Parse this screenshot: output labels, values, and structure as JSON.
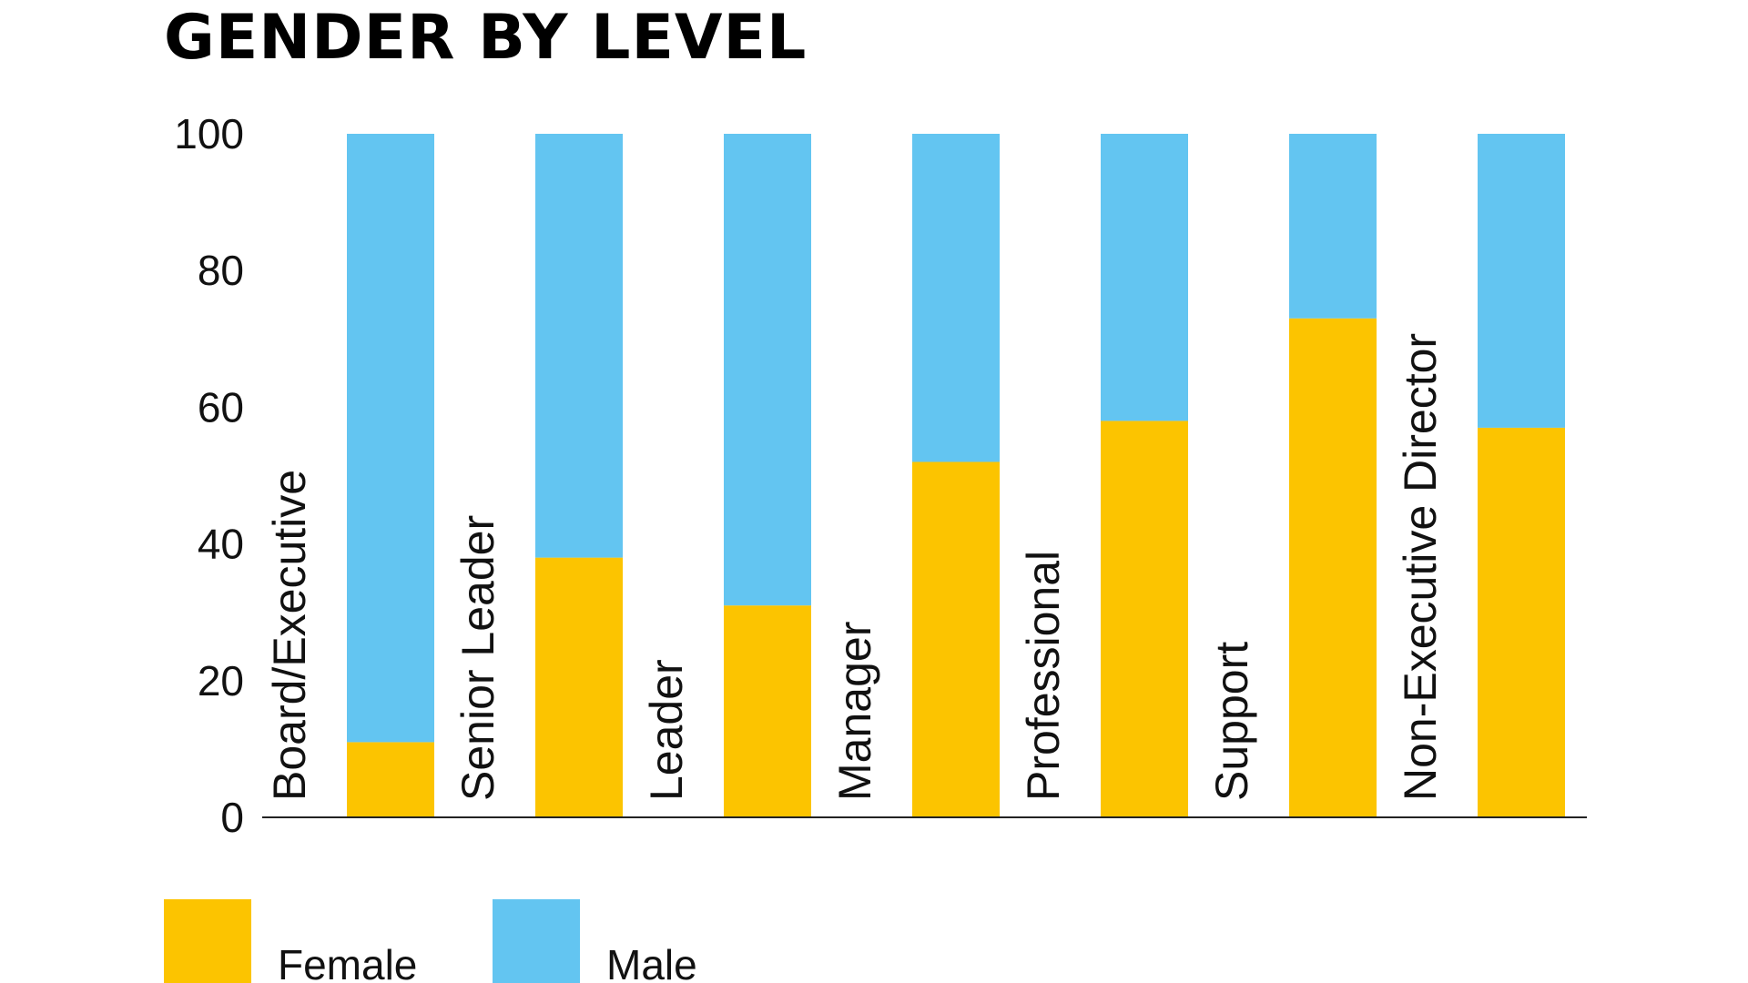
{
  "chart_data": {
    "type": "bar",
    "stacked": true,
    "title": "GENDER BY LEVEL",
    "categories": [
      "Board/Executive",
      "Senior Leader",
      "Leader",
      "Manager",
      "Professional",
      "Support",
      "Non-Executive Director"
    ],
    "series": [
      {
        "name": "Female",
        "color": "#FCC400",
        "values": [
          11,
          38,
          31,
          52,
          58,
          73,
          57
        ]
      },
      {
        "name": "Male",
        "color": "#63C5F1",
        "values": [
          89,
          62,
          69,
          48,
          42,
          27,
          43
        ]
      }
    ],
    "ylim": [
      0,
      100
    ],
    "yticks": [
      0,
      20,
      40,
      60,
      80,
      100
    ],
    "grid": false,
    "legend": "bottom-left"
  }
}
